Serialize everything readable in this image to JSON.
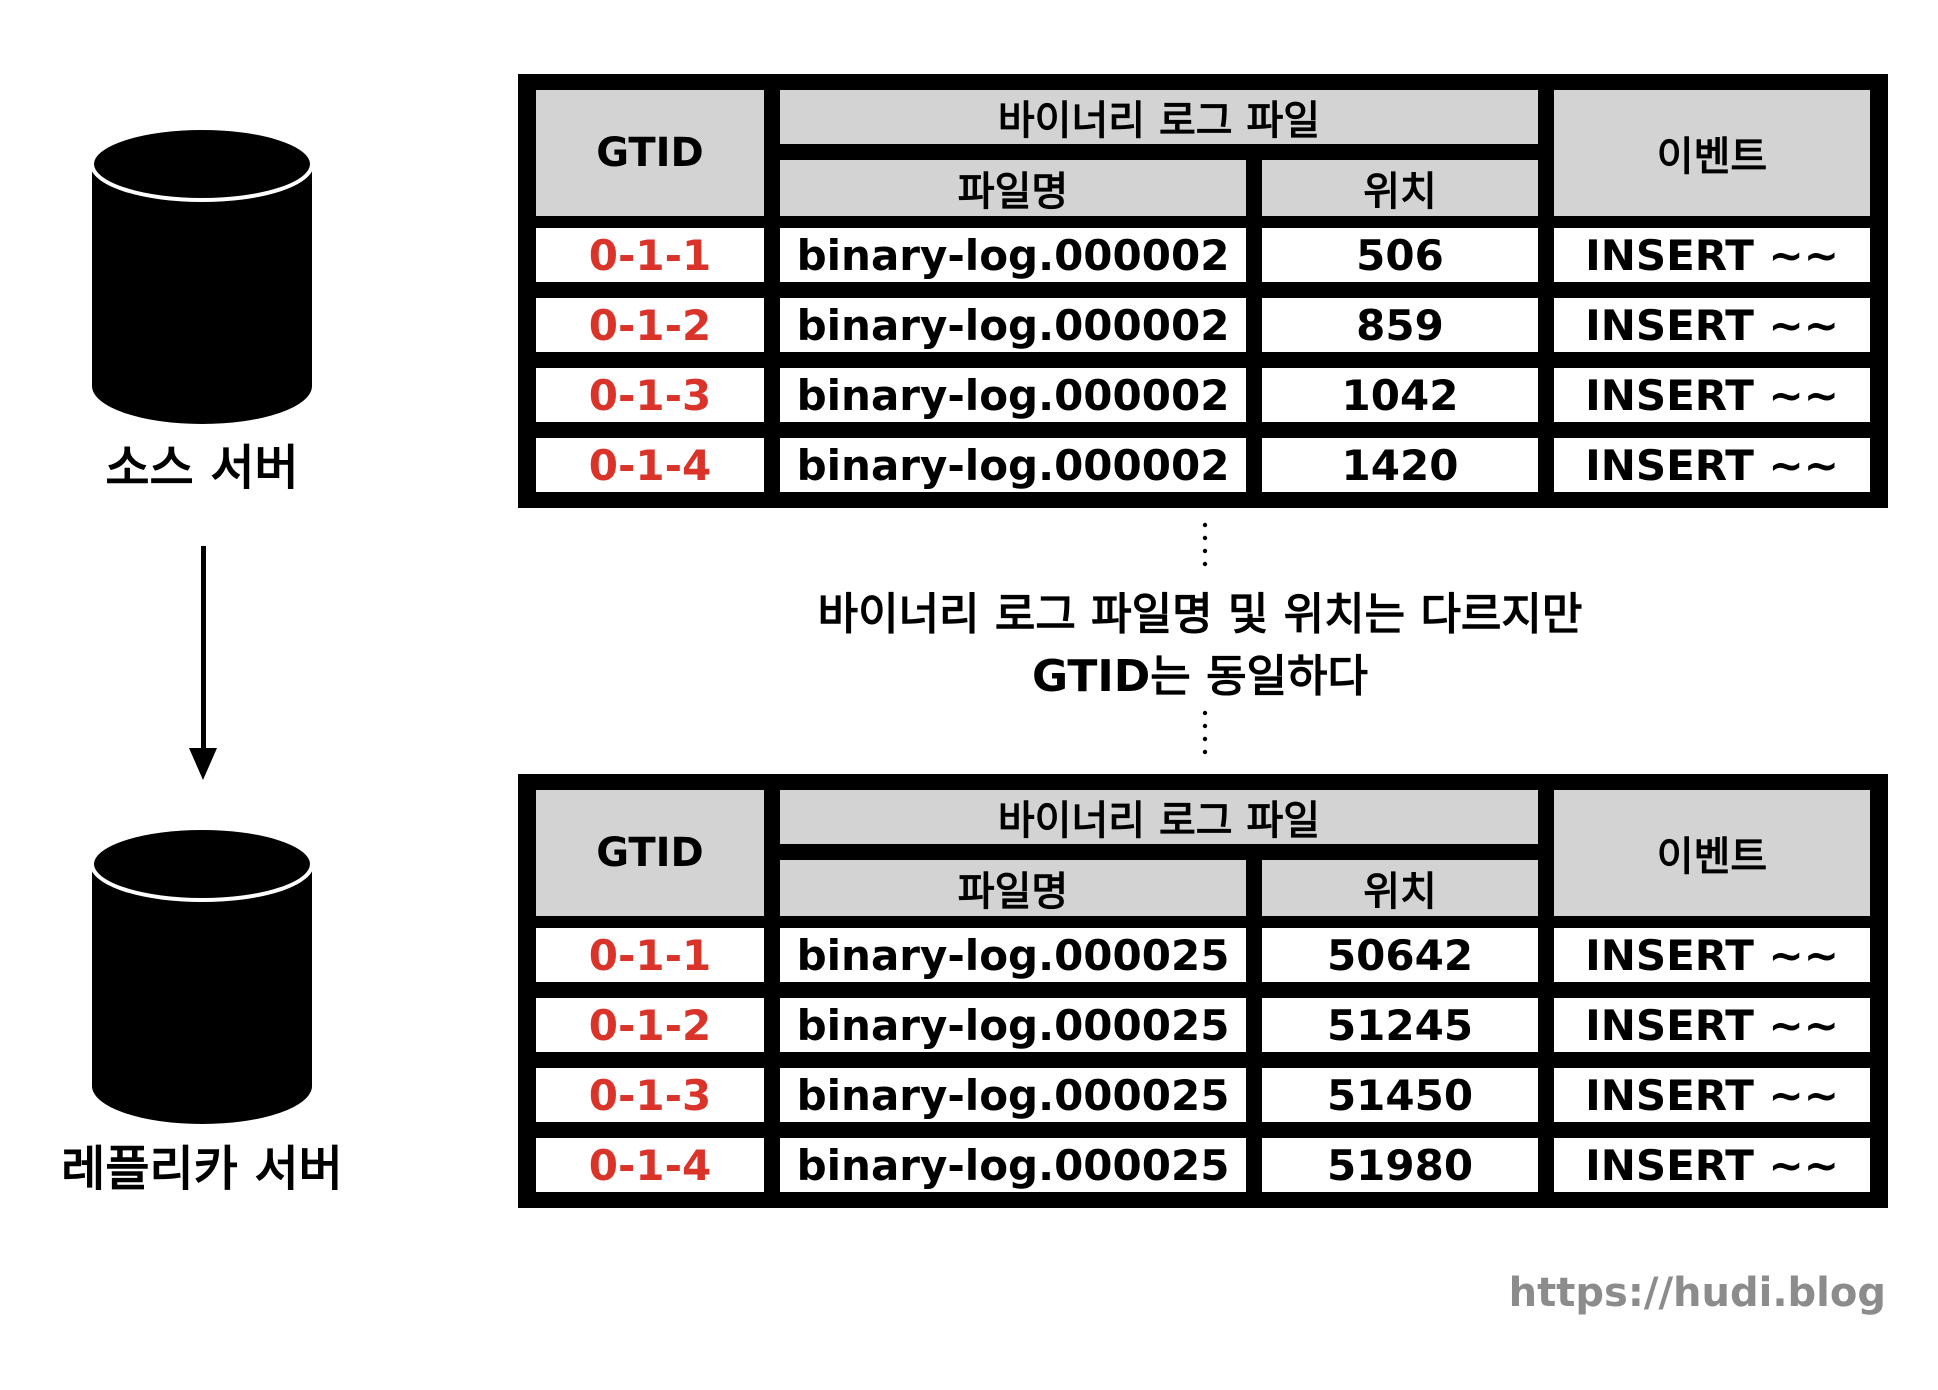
{
  "servers": {
    "source_label": "소스 서버",
    "replica_label": "레플리카 서버"
  },
  "note": {
    "line1": "바이너리 로그 파일명 및 위치는 다르지만",
    "line2": "GTID는 동일하다"
  },
  "tables": {
    "source": {
      "headers": {
        "gtid": "GTID",
        "binlog": "바이너리 로그 파일",
        "filename": "파일명",
        "position": "위치",
        "event": "이벤트"
      },
      "rows": [
        {
          "gtid": "0-1-1",
          "filename": "binary-log.000002",
          "position": "506",
          "event": "INSERT ~~"
        },
        {
          "gtid": "0-1-2",
          "filename": "binary-log.000002",
          "position": "859",
          "event": "INSERT ~~"
        },
        {
          "gtid": "0-1-3",
          "filename": "binary-log.000002",
          "position": "1042",
          "event": "INSERT ~~"
        },
        {
          "gtid": "0-1-4",
          "filename": "binary-log.000002",
          "position": "1420",
          "event": "INSERT ~~"
        }
      ]
    },
    "replica": {
      "headers": {
        "gtid": "GTID",
        "binlog": "바이너리 로그 파일",
        "filename": "파일명",
        "position": "위치",
        "event": "이벤트"
      },
      "rows": [
        {
          "gtid": "0-1-1",
          "filename": "binary-log.000025",
          "position": "50642",
          "event": "INSERT ~~"
        },
        {
          "gtid": "0-1-2",
          "filename": "binary-log.000025",
          "position": "51245",
          "event": "INSERT ~~"
        },
        {
          "gtid": "0-1-3",
          "filename": "binary-log.000025",
          "position": "51450",
          "event": "INSERT ~~"
        },
        {
          "gtid": "0-1-4",
          "filename": "binary-log.000025",
          "position": "51980",
          "event": "INSERT ~~"
        }
      ]
    }
  },
  "watermark": "https://hudi.blog",
  "colors": {
    "gtid_text": "#d9332a",
    "header_fill": "#d3d3d3",
    "border": "#000000",
    "watermark": "#8c8c8c"
  }
}
